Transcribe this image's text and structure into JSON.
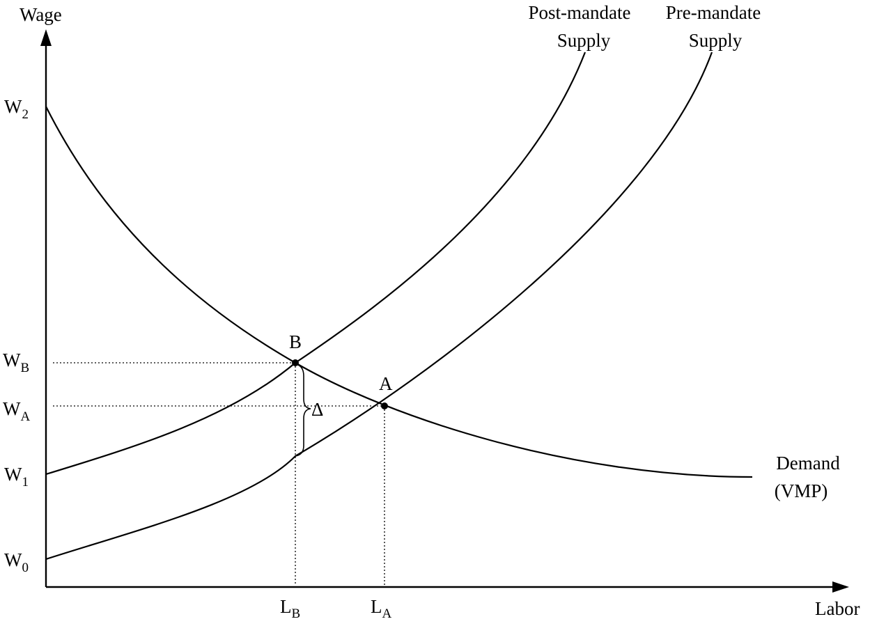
{
  "axes": {
    "y_label": "Wage",
    "x_label": "Labor"
  },
  "y_ticks": {
    "w2": {
      "base": "W",
      "sub": "2"
    },
    "wb": {
      "base": "W",
      "sub": "B"
    },
    "wa": {
      "base": "W",
      "sub": "A"
    },
    "w1": {
      "base": "W",
      "sub": "1"
    },
    "w0": {
      "base": "W",
      "sub": "0"
    }
  },
  "x_ticks": {
    "lb": {
      "base": "L",
      "sub": "B"
    },
    "la": {
      "base": "L",
      "sub": "A"
    }
  },
  "curves": {
    "post_mandate": {
      "line1": "Post-mandate",
      "line2": "Supply"
    },
    "pre_mandate": {
      "line1": "Pre-mandate",
      "line2": "Supply"
    },
    "demand": {
      "line1": "Demand",
      "line2": "(VMP)"
    }
  },
  "points": {
    "b": "B",
    "a": "A"
  },
  "gap_label": "Δ"
}
